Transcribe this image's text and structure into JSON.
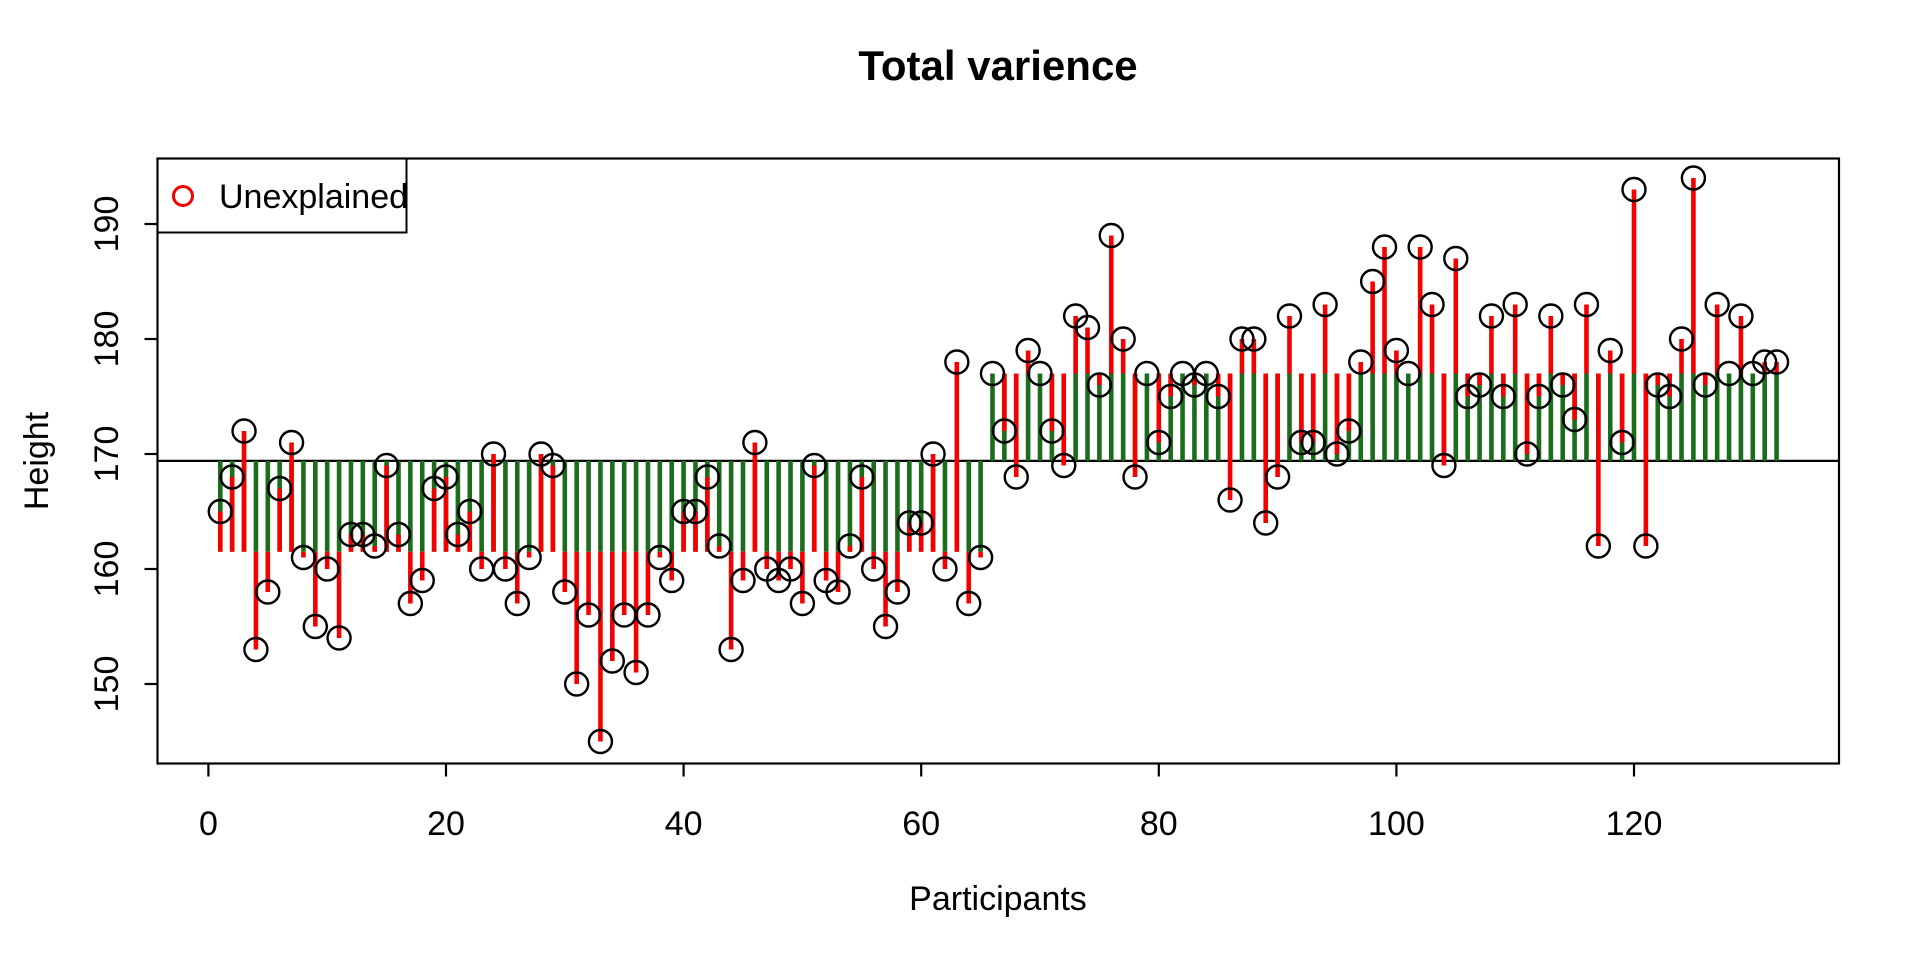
{
  "title": "Total varience",
  "legend": {
    "label": "Unexplained",
    "marker": "open-circle-icon",
    "marker_color": "#f40000"
  },
  "axes": {
    "xlabel": "Participants",
    "ylabel": "Height",
    "x_ticks": [
      0,
      20,
      40,
      60,
      80,
      100,
      120
    ],
    "y_ticks": [
      150,
      160,
      170,
      180,
      190
    ]
  },
  "chart_data": {
    "type": "stem",
    "title": "Total varience",
    "xlabel": "Participants",
    "ylabel": "Height",
    "x_description": "participant index 1..132",
    "values": [
      165,
      168,
      172,
      153,
      158,
      167,
      171,
      161,
      155,
      160,
      154,
      163,
      163,
      162,
      169,
      163,
      157,
      159,
      167,
      168,
      163,
      165,
      160,
      170,
      160,
      157,
      161,
      170,
      169,
      158,
      150,
      156,
      145,
      152,
      156,
      151,
      156,
      161,
      159,
      165,
      165,
      168,
      162,
      153,
      159,
      171,
      160,
      159,
      160,
      157,
      169,
      159,
      158,
      162,
      168,
      160,
      155,
      158,
      164,
      164,
      170,
      160,
      178,
      157,
      161,
      177,
      172,
      168,
      179,
      177,
      172,
      169,
      182,
      181,
      176,
      189,
      180,
      168,
      177,
      171,
      175,
      177,
      176,
      177,
      175,
      166,
      180,
      180,
      164,
      168,
      182,
      171,
      171,
      183,
      170,
      172,
      178,
      185,
      188,
      179,
      177,
      188,
      183,
      169,
      187,
      175,
      176,
      182,
      175,
      183,
      170,
      175,
      182,
      176,
      173,
      183,
      162,
      179,
      171,
      193,
      162,
      176,
      175,
      180,
      194,
      176,
      183,
      177,
      182,
      177,
      178,
      178
    ],
    "group_split_index": 65,
    "group_means": {
      "left_group": 161.5,
      "right_group": 177.0
    },
    "overall_mean": 169.4,
    "x_range": [
      0,
      133
    ],
    "y_range": [
      145,
      194
    ],
    "grid": "off",
    "legend_position": "top-left",
    "colors": {
      "explained_segment": "#1b6d1b",
      "unexplained_segment": "#f40000",
      "point_outline": "#000000",
      "mean_line": "#000000"
    }
  }
}
